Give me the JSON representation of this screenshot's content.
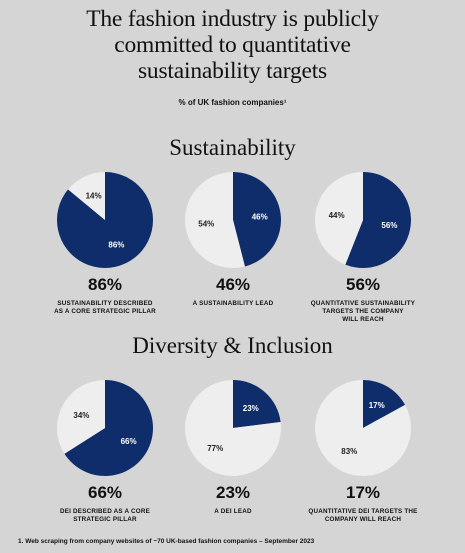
{
  "title_lines": [
    "The fashion industry is publicly",
    "committed to quantitative",
    "sustainability targets"
  ],
  "subtitle": "% of UK fashion companies¹",
  "colors": {
    "primary": "#0f2d6b",
    "secondary": "#eeeeee",
    "background": "#d5d5d5"
  },
  "sections": [
    {
      "heading": "Sustainability"
    },
    {
      "heading": "Diversity & Inclusion"
    }
  ],
  "chart_data": [
    {
      "type": "pie",
      "section": "Sustainability",
      "big_value": "86%",
      "caption_lines": [
        "SUSTAINABILITY DESCRIBED",
        "AS A CORE STRATEGIC PILLAR"
      ],
      "slices": [
        {
          "value": 86,
          "label": "86%",
          "color": "primary"
        },
        {
          "value": 14,
          "label": "14%",
          "color": "secondary"
        }
      ]
    },
    {
      "type": "pie",
      "section": "Sustainability",
      "big_value": "46%",
      "caption_lines": [
        "A SUSTAINABILITY LEAD"
      ],
      "slices": [
        {
          "value": 46,
          "label": "46%",
          "color": "primary"
        },
        {
          "value": 54,
          "label": "54%",
          "color": "secondary"
        }
      ]
    },
    {
      "type": "pie",
      "section": "Sustainability",
      "big_value": "56%",
      "caption_lines": [
        "QUANTITATIVE SUSTAINABILITY",
        "TARGETS THE COMPANY",
        "WILL REACH"
      ],
      "slices": [
        {
          "value": 56,
          "label": "56%",
          "color": "primary"
        },
        {
          "value": 44,
          "label": "44%",
          "color": "secondary"
        }
      ]
    },
    {
      "type": "pie",
      "section": "Diversity & Inclusion",
      "big_value": "66%",
      "caption_lines": [
        "DEI DESCRIBED AS A CORE",
        "STRATEGIC PILLAR"
      ],
      "slices": [
        {
          "value": 66,
          "label": "66%",
          "color": "primary"
        },
        {
          "value": 34,
          "label": "34%",
          "color": "secondary"
        }
      ]
    },
    {
      "type": "pie",
      "section": "Diversity & Inclusion",
      "big_value": "23%",
      "caption_lines": [
        "A DEI LEAD"
      ],
      "slices": [
        {
          "value": 23,
          "label": "23%",
          "color": "primary"
        },
        {
          "value": 77,
          "label": "77%",
          "color": "secondary"
        }
      ]
    },
    {
      "type": "pie",
      "section": "Diversity & Inclusion",
      "big_value": "17%",
      "caption_lines": [
        "QUANTITATIVE DEI TARGETS THE",
        "COMPANY WILL REACH"
      ],
      "slices": [
        {
          "value": 17,
          "label": "17%",
          "color": "primary"
        },
        {
          "value": 83,
          "label": "83%",
          "color": "secondary"
        }
      ]
    }
  ],
  "footnote": "1. Web scraping from company websites of ~70 UK-based fashion companies – September 2023"
}
